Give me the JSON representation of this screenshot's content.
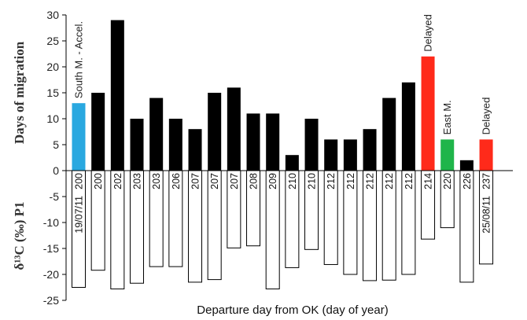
{
  "chart_data": {
    "type": "bar",
    "xlabel": "Departure day from OK (day of year)",
    "ylabel_top": "Days of migration",
    "ylabel_bottom": "δ¹³C (‰) P1",
    "ylim": [
      -25,
      30
    ],
    "yticks": [
      -25,
      -20,
      -15,
      -10,
      -5,
      0,
      5,
      10,
      15,
      20,
      25,
      30
    ],
    "categories": [
      "200",
      "200",
      "202",
      "203",
      "203",
      "206",
      "207",
      "207",
      "207",
      "208",
      "209",
      "210",
      "210",
      "212",
      "212",
      "212",
      "212",
      "212",
      "214",
      "220",
      "226",
      "237"
    ],
    "series": [
      {
        "values": [
          13,
          15,
          29,
          10,
          14,
          10,
          8,
          15,
          16,
          11,
          11,
          3,
          10,
          6,
          6,
          8,
          14,
          17,
          22,
          6,
          2,
          6
        ],
        "colors": [
          "#29a8e0",
          "#000000",
          "#000000",
          "#000000",
          "#000000",
          "#000000",
          "#000000",
          "#000000",
          "#000000",
          "#000000",
          "#000000",
          "#000000",
          "#000000",
          "#000000",
          "#000000",
          "#000000",
          "#000000",
          "#000000",
          "#ff2a1a",
          "#1fb54a",
          "#000000",
          "#ff2a1a"
        ]
      },
      {
        "values": [
          -22.5,
          -19.2,
          -22.8,
          -21.7,
          -18.5,
          -18.5,
          -21.5,
          -21,
          -14.9,
          -14.5,
          -22.8,
          -18.7,
          -15.2,
          -18.1,
          -20,
          -21.2,
          -21.1,
          -20,
          -13.2,
          -11,
          -21.5,
          -18
        ]
      }
    ],
    "annotations": [
      {
        "index": 0,
        "text": "South M. - Accel."
      },
      {
        "index": 18,
        "text": "Delayed"
      },
      {
        "index": 19,
        "text": "East M."
      },
      {
        "index": 21,
        "text": "Delayed"
      }
    ],
    "date_labels": [
      {
        "index": 0,
        "text": "19/07/11"
      },
      {
        "index": 21,
        "text": "25/08/11"
      }
    ]
  }
}
